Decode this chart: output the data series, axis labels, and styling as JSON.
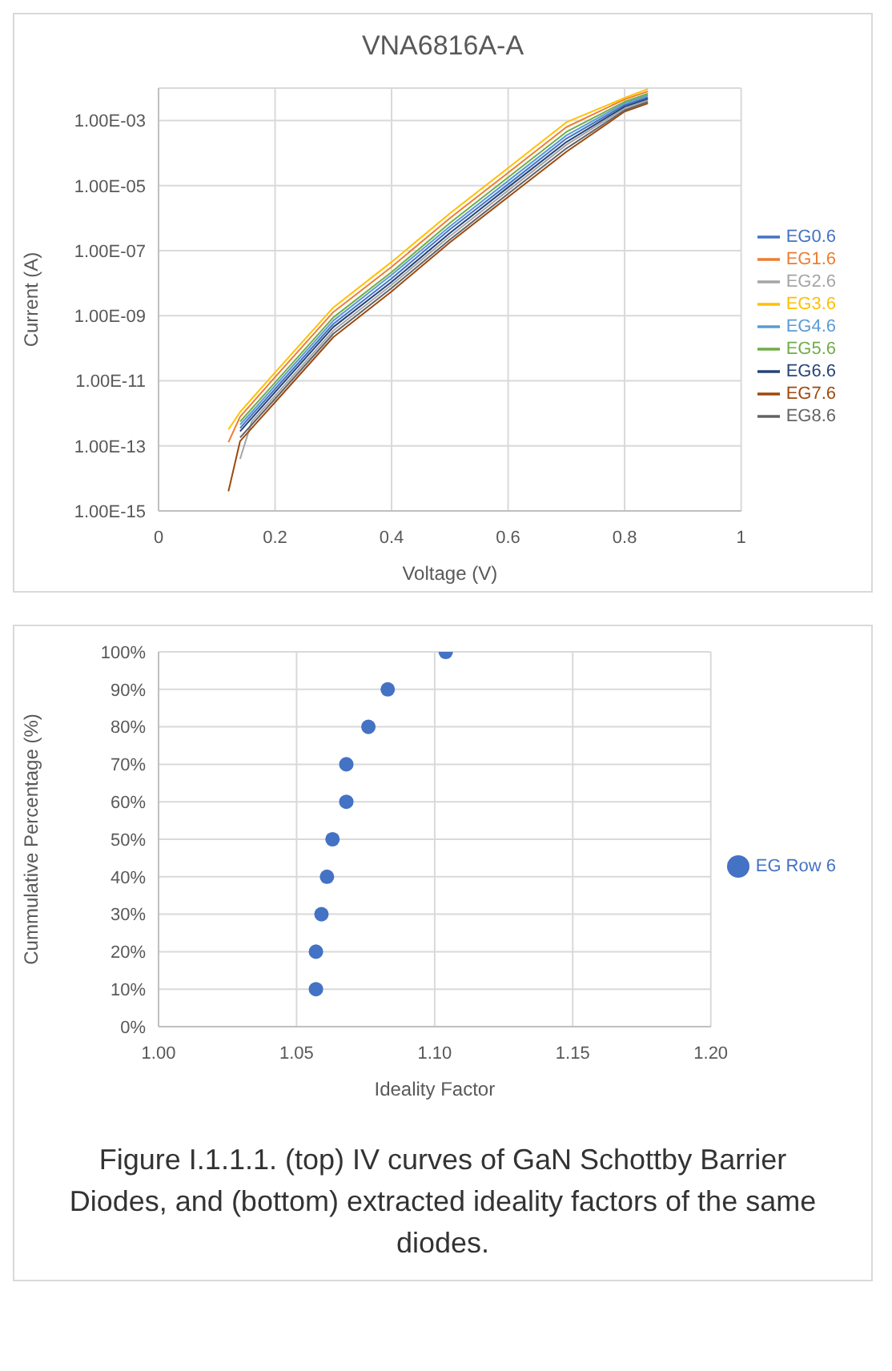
{
  "chart_data": [
    {
      "type": "line",
      "title": "VNA6816A-A",
      "xlabel": "Voltage (V)",
      "ylabel": "Current (A)",
      "log": "y",
      "grid": true,
      "legend": "right",
      "marker": "none",
      "line_style": "solid",
      "xlim": [
        0,
        1
      ],
      "xticks": [
        0,
        0.2,
        0.4,
        0.6,
        0.8,
        1
      ],
      "ylim": [
        1e-15,
        0.01
      ],
      "yticks": [
        {
          "value": 1e-15,
          "label": "1.00E-15"
        },
        {
          "value": 1e-13,
          "label": "1.00E-13"
        },
        {
          "value": 1e-11,
          "label": "1.00E-11"
        },
        {
          "value": 1e-09,
          "label": "1.00E-09"
        },
        {
          "value": 1e-07,
          "label": "1.00E-07"
        },
        {
          "value": 1e-05,
          "label": "1.00E-05"
        },
        {
          "value": 0.001,
          "label": "1.00E-03"
        }
      ],
      "x": [
        0.12,
        0.14,
        0.16,
        0.2,
        0.3,
        0.4,
        0.5,
        0.6,
        0.7,
        0.8,
        0.84
      ],
      "series": [
        {
          "name": "EG0.6",
          "color": "#4472c4",
          "values": [
            null,
            3.5e-13,
            8.9e-13,
            5.6e-12,
            5.6e-10,
            1.4e-08,
            4.5e-07,
            1.1e-05,
            0.00028,
            0.003,
            0.0053
          ]
        },
        {
          "name": "EG1.6",
          "color": "#ed7d31",
          "values": [
            1.3e-13,
            7.9e-13,
            2e-12,
            1.3e-11,
            1.3e-09,
            3.2e-08,
            1e-06,
            2.5e-05,
            0.00063,
            0.0045,
            0.0079
          ]
        },
        {
          "name": "EG2.6",
          "color": "#a5a5a5",
          "values": [
            null,
            4e-14,
            5.6e-13,
            3.5e-12,
            3.5e-10,
            8.9e-09,
            2.8e-07,
            7.1e-06,
            0.00018,
            0.0024,
            0.0042
          ]
        },
        {
          "name": "EG3.6",
          "color": "#ffc000",
          "values": [
            3.2e-13,
            1.1e-12,
            2.8e-12,
            1.8e-11,
            1.8e-09,
            4.5e-08,
            1.4e-06,
            3.5e-05,
            0.00089,
            0.005,
            0.0094
          ]
        },
        {
          "name": "EG4.6",
          "color": "#5b9bd5",
          "values": [
            null,
            4.5e-13,
            1.1e-12,
            7.1e-12,
            7.1e-10,
            1.8e-08,
            5.6e-07,
            1.4e-05,
            0.00035,
            0.0034,
            0.006
          ]
        },
        {
          "name": "EG5.6",
          "color": "#70ad47",
          "values": [
            null,
            5.6e-13,
            1.4e-12,
            8.9e-12,
            8.9e-10,
            2.2e-08,
            7.1e-07,
            1.8e-05,
            0.00045,
            0.0038,
            0.0067
          ]
        },
        {
          "name": "EG6.6",
          "color": "#264478",
          "values": [
            null,
            2.8e-13,
            7.1e-13,
            4.5e-12,
            4.5e-10,
            1.1e-08,
            3.5e-07,
            8.9e-06,
            0.00022,
            0.0027,
            0.0047
          ]
        },
        {
          "name": "EG7.6",
          "color": "#9e480e",
          "values": [
            4e-15,
            1.4e-13,
            3.5e-13,
            2.2e-12,
            2.2e-10,
            5.6e-09,
            1.8e-07,
            4.5e-06,
            0.00011,
            0.0019,
            0.0034
          ]
        },
        {
          "name": "EG8.6",
          "color": "#636363",
          "values": [
            null,
            1.8e-13,
            4.5e-13,
            2.8e-12,
            2.8e-10,
            7.1e-09,
            2.2e-07,
            5.6e-06,
            0.00014,
            0.0021,
            0.0038
          ]
        }
      ]
    },
    {
      "type": "scatter",
      "xlabel": "Ideality Factor",
      "ylabel": "Cummulative Percentage (%)",
      "grid": true,
      "legend": "right",
      "marker": "circle",
      "xlim": [
        1,
        1.2
      ],
      "xticks": [
        {
          "value": 1,
          "label": "1.00"
        },
        {
          "value": 1.05,
          "label": "1.05"
        },
        {
          "value": 1.1,
          "label": "1.10"
        },
        {
          "value": 1.15,
          "label": "1.15"
        },
        {
          "value": 1.2,
          "label": "1.20"
        }
      ],
      "ylim": [
        0,
        100
      ],
      "yticks": [
        {
          "value": 0,
          "label": "0%"
        },
        {
          "value": 10,
          "label": "10%"
        },
        {
          "value": 20,
          "label": "20%"
        },
        {
          "value": 30,
          "label": "30%"
        },
        {
          "value": 40,
          "label": "40%"
        },
        {
          "value": 50,
          "label": "50%"
        },
        {
          "value": 60,
          "label": "60%"
        },
        {
          "value": 70,
          "label": "70%"
        },
        {
          "value": 80,
          "label": "80%"
        },
        {
          "value": 90,
          "label": "90%"
        },
        {
          "value": 100,
          "label": "100%"
        }
      ],
      "x": [
        1.057,
        1.057,
        1.059,
        1.061,
        1.063,
        1.068,
        1.068,
        1.076,
        1.083,
        1.104
      ],
      "series": [
        {
          "name": "EG Row 6",
          "color": "#4472c4",
          "values": [
            10,
            20,
            30,
            40,
            50,
            60,
            70,
            80,
            90,
            100
          ]
        }
      ],
      "annotations": [
        "Figure I.1.1.1. (top) IV curves of GaN Schottby Barrier Diodes, and (bottom) extracted ideality factors of the same diodes."
      ]
    }
  ]
}
